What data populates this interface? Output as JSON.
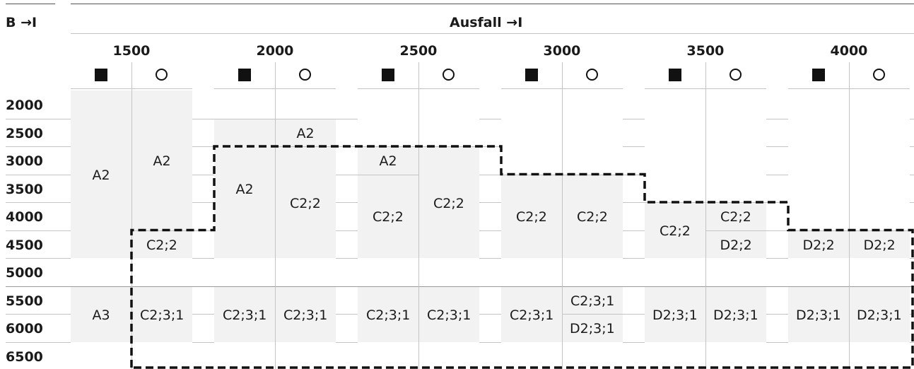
{
  "corner_label": "B →I",
  "axis_title": "Ausfall →I",
  "columns": [
    "1500",
    "2000",
    "2500",
    "3000",
    "3500",
    "4000"
  ],
  "sub_symbols": [
    "filled-square-icon",
    "open-circle-icon"
  ],
  "rows": [
    "2000",
    "2500",
    "3000",
    "3500",
    "4000",
    "4500",
    "5000",
    "5500",
    "6000",
    "6500"
  ],
  "cells": [
    {
      "col": 0,
      "sub": 0,
      "from": 0,
      "to": 6,
      "label": "A2"
    },
    {
      "col": 0,
      "sub": 1,
      "from": 0,
      "to": 5,
      "label": "A2"
    },
    {
      "col": 0,
      "sub": 1,
      "from": 5,
      "to": 6,
      "label": "C2;2"
    },
    {
      "col": 0,
      "sub": 0,
      "from": 7,
      "to": 9,
      "label": "A3"
    },
    {
      "col": 0,
      "sub": 1,
      "from": 7,
      "to": 9,
      "label": "C2;3;1"
    },
    {
      "col": 1,
      "sub": 0,
      "from": 1,
      "to": 6,
      "label": "A2"
    },
    {
      "col": 1,
      "sub": 1,
      "from": 1,
      "to": 2,
      "label": "A2"
    },
    {
      "col": 1,
      "sub": 1,
      "from": 2,
      "to": 6,
      "label": "C2;2"
    },
    {
      "col": 1,
      "sub": 0,
      "from": 7,
      "to": 9,
      "label": "C2;3;1"
    },
    {
      "col": 1,
      "sub": 1,
      "from": 7,
      "to": 9,
      "label": "C2;3;1"
    },
    {
      "col": 2,
      "sub": 0,
      "from": 2,
      "to": 3,
      "label": "A2"
    },
    {
      "col": 2,
      "sub": 0,
      "from": 3,
      "to": 6,
      "label": "C2;2"
    },
    {
      "col": 2,
      "sub": 1,
      "from": 2,
      "to": 6,
      "label": "C2;2"
    },
    {
      "col": 2,
      "sub": 0,
      "from": 7,
      "to": 9,
      "label": "C2;3;1"
    },
    {
      "col": 2,
      "sub": 1,
      "from": 7,
      "to": 9,
      "label": "C2;3;1"
    },
    {
      "col": 3,
      "sub": 0,
      "from": 3,
      "to": 6,
      "label": "C2;2"
    },
    {
      "col": 3,
      "sub": 1,
      "from": 3,
      "to": 6,
      "label": "C2;2"
    },
    {
      "col": 3,
      "sub": 0,
      "from": 7,
      "to": 9,
      "label": "C2;3;1"
    },
    {
      "col": 3,
      "sub": 1,
      "from": 7,
      "to": 8,
      "label": "C2;3;1"
    },
    {
      "col": 3,
      "sub": 1,
      "from": 8,
      "to": 9,
      "label": "D2;3;1"
    },
    {
      "col": 4,
      "sub": 0,
      "from": 4,
      "to": 6,
      "label": "C2;2"
    },
    {
      "col": 4,
      "sub": 1,
      "from": 4,
      "to": 5,
      "label": "C2;2"
    },
    {
      "col": 4,
      "sub": 1,
      "from": 5,
      "to": 6,
      "label": "D2;2"
    },
    {
      "col": 4,
      "sub": 0,
      "from": 7,
      "to": 9,
      "label": "D2;3;1"
    },
    {
      "col": 4,
      "sub": 1,
      "from": 7,
      "to": 9,
      "label": "D2;3;1"
    },
    {
      "col": 5,
      "sub": 0,
      "from": 5,
      "to": 6,
      "label": "D2;2"
    },
    {
      "col": 5,
      "sub": 1,
      "from": 5,
      "to": 6,
      "label": "D2;2"
    },
    {
      "col": 5,
      "sub": 0,
      "from": 7,
      "to": 9,
      "label": "D2;3;1"
    },
    {
      "col": 5,
      "sub": 1,
      "from": 7,
      "to": 9,
      "label": "D2;3;1"
    }
  ],
  "dashed_boundary_start_row": [
    5,
    2,
    2,
    3,
    4,
    5
  ],
  "colors": {
    "cell_fill": "#f2f2f2",
    "text": "#1a1a1a",
    "boundary": "#111111"
  }
}
